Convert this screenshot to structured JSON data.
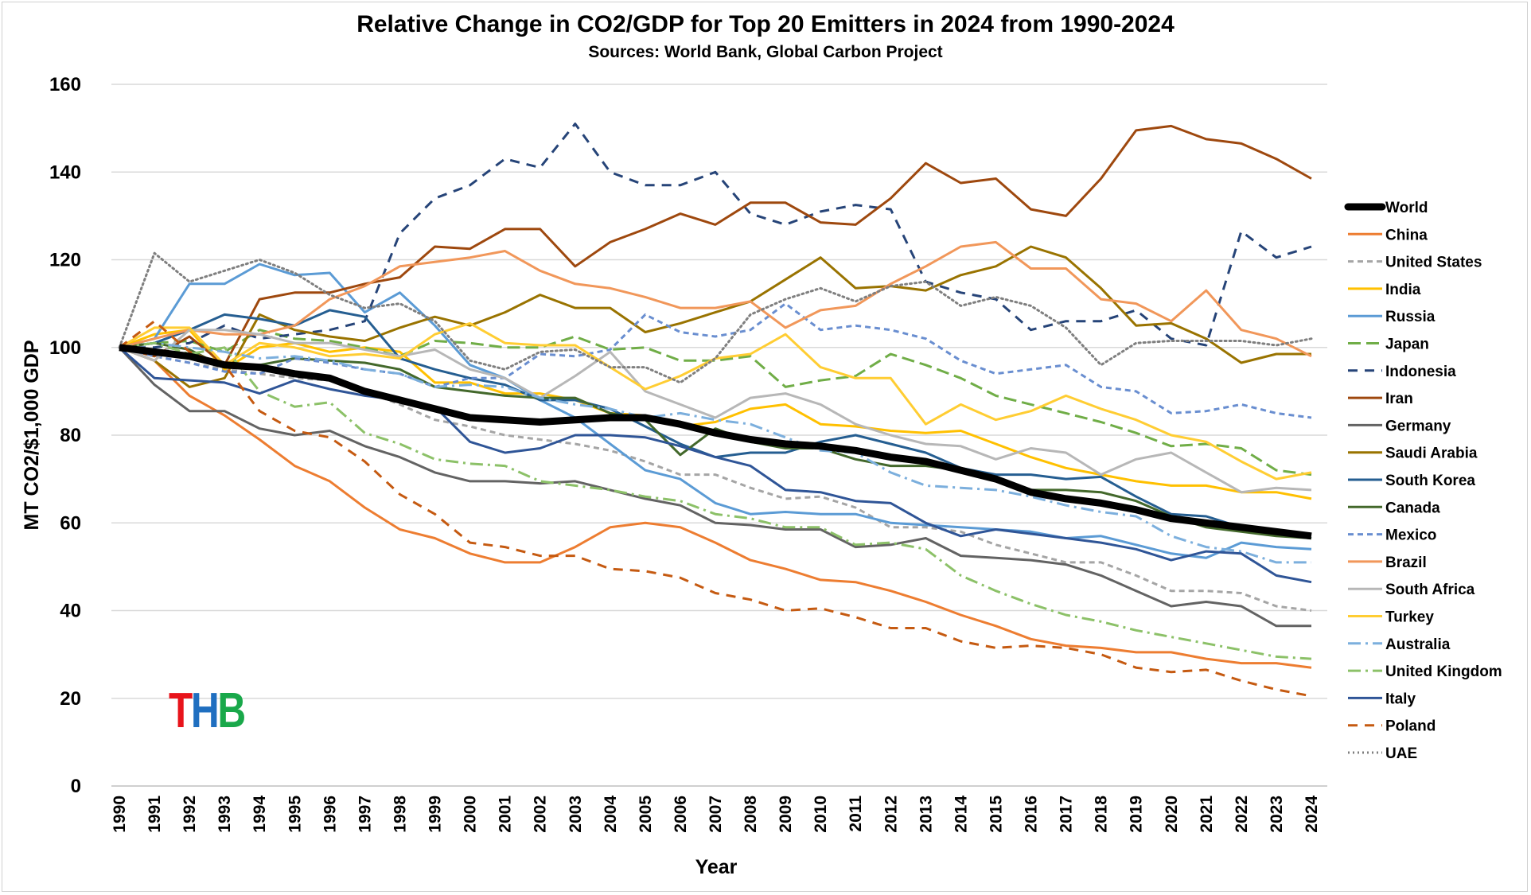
{
  "chart_data": {
    "type": "line",
    "title": "Relative Change in CO2/GDP for Top 20 Emitters in 2024 from 1990-2024",
    "subtitle": "Sources: World Bank, Global Carbon Project",
    "xlabel": "Year",
    "ylabel": "MT CO2/$1,000 GDP",
    "ylim": [
      0,
      160
    ],
    "yticks": [
      0,
      20,
      40,
      60,
      80,
      100,
      120,
      140,
      160
    ],
    "grid": true,
    "legend_position": "right",
    "x": [
      1990,
      1991,
      1992,
      1993,
      1994,
      1995,
      1996,
      1997,
      1998,
      1999,
      2000,
      2001,
      2002,
      2003,
      2004,
      2005,
      2006,
      2007,
      2008,
      2009,
      2010,
      2011,
      2012,
      2013,
      2014,
      2015,
      2016,
      2017,
      2018,
      2019,
      2020,
      2021,
      2022,
      2023,
      2024
    ],
    "series": [
      {
        "name": "World",
        "color": "#000000",
        "style": "solid-thick",
        "values": [
          100,
          99,
          98,
          96,
          95.5,
          94,
          93,
          90,
          88,
          86,
          84,
          83.5,
          83,
          83.5,
          84,
          84,
          82.5,
          80.5,
          79,
          78,
          77.5,
          76.5,
          75,
          74,
          72,
          70,
          67,
          65.5,
          64.5,
          63,
          61,
          60,
          59,
          58,
          57
        ]
      },
      {
        "name": "China",
        "color": "#ED7D31",
        "style": "solid",
        "values": [
          100,
          97,
          89,
          84.5,
          79,
          73,
          69.5,
          63.5,
          58.5,
          56.5,
          53,
          51,
          51,
          54.5,
          59,
          60,
          59,
          55.5,
          51.5,
          49.5,
          47,
          46.5,
          44.5,
          42,
          39,
          36.5,
          33.5,
          32,
          31.5,
          30.5,
          30.5,
          29,
          28,
          28,
          27
        ]
      },
      {
        "name": "United States",
        "color": "#A5A5A5",
        "style": "dash",
        "values": [
          100,
          98,
          96.5,
          95,
          94,
          93,
          92.5,
          90,
          87,
          83.5,
          82,
          80,
          79,
          78,
          76.5,
          74,
          71,
          71,
          68,
          65.5,
          66,
          63.5,
          59,
          59,
          58,
          55,
          53,
          51,
          51,
          48,
          44.5,
          44.5,
          44,
          41,
          40
        ]
      },
      {
        "name": "India",
        "color": "#FFC000",
        "style": "solid",
        "values": [
          100,
          103,
          104,
          95,
          100,
          101,
          99,
          100,
          99,
          92,
          92,
          89.5,
          89.5,
          88,
          85,
          84.5,
          82,
          83,
          86,
          87,
          82.5,
          82,
          81,
          80.5,
          81,
          78,
          75,
          72.5,
          71,
          69.5,
          68.5,
          68.5,
          67,
          67,
          65.5
        ]
      },
      {
        "name": "Russia",
        "color": "#5B9BD5",
        "style": "solid",
        "values": [
          100,
          102,
          114.5,
          114.5,
          119,
          116.5,
          117,
          108,
          112.5,
          105,
          96,
          93,
          88,
          84,
          78,
          72,
          70,
          64.5,
          62,
          62.5,
          62,
          62,
          60,
          59.5,
          59,
          58.5,
          58,
          56.5,
          57,
          55,
          53,
          52,
          55.5,
          54.5,
          54
        ]
      },
      {
        "name": "Japan",
        "color": "#70AD47",
        "style": "longdash",
        "values": [
          100,
          101,
          101.5,
          99,
          104,
          102,
          101.5,
          100,
          98,
          101.5,
          101,
          100,
          100,
          102.5,
          99.5,
          100,
          97,
          97,
          98,
          91,
          92.5,
          93.5,
          98.5,
          96,
          93,
          89,
          87,
          85,
          83,
          80.5,
          77.5,
          78,
          77,
          72,
          71
        ]
      },
      {
        "name": "Indonesia",
        "color": "#264478",
        "style": "longdash2",
        "values": [
          100,
          100,
          101,
          105,
          102,
          103,
          104,
          106,
          126,
          134,
          137,
          143,
          141,
          151,
          140,
          137,
          137,
          140,
          130.5,
          128,
          131,
          132.5,
          131.5,
          115,
          112.5,
          111,
          104,
          106,
          106,
          108.5,
          102,
          100.5,
          126.5,
          120.5,
          123
        ]
      },
      {
        "name": "Iran",
        "color": "#9E480E",
        "style": "solid",
        "values": [
          100,
          98,
          102.5,
          96,
          111,
          112.5,
          112.5,
          114.5,
          116,
          123,
          122.5,
          127,
          127,
          118.5,
          124,
          127,
          130.5,
          128,
          133,
          133,
          128.5,
          128,
          134,
          142,
          137.5,
          138.5,
          131.5,
          130,
          138.5,
          149.5,
          150.5,
          147.5,
          146.5,
          143,
          138.5
        ]
      },
      {
        "name": "Germany",
        "color": "#636363",
        "style": "solid",
        "values": [
          100,
          91.5,
          85.5,
          85.5,
          81.5,
          80,
          81,
          77.5,
          75,
          71.5,
          69.5,
          69.5,
          69,
          69.5,
          67.5,
          65.5,
          64,
          60,
          59.5,
          58.5,
          58.5,
          54.5,
          55,
          56.5,
          52.5,
          52,
          51.5,
          50.5,
          48,
          44.5,
          41,
          42,
          41,
          36.5,
          36.5
        ]
      },
      {
        "name": "Saudi Arabia",
        "color": "#997300",
        "style": "solid",
        "values": [
          100,
          97,
          91,
          93,
          107.5,
          104,
          102.5,
          101.5,
          104.5,
          107,
          105,
          108,
          112,
          109,
          109,
          103.5,
          105.5,
          108,
          110.5,
          115.5,
          120.5,
          113.5,
          114,
          113,
          116.5,
          118.5,
          123,
          120.5,
          113.5,
          105,
          105.5,
          102,
          96.5,
          98.5,
          98.5
        ]
      },
      {
        "name": "South Korea",
        "color": "#255E91",
        "style": "solid",
        "values": [
          100,
          101,
          104,
          107.5,
          106.5,
          105,
          108.5,
          107,
          97.5,
          95,
          93,
          91.5,
          88,
          88,
          86,
          82,
          78,
          75,
          76,
          76,
          78.5,
          80,
          78,
          76,
          72.5,
          71,
          71,
          70,
          70.5,
          66,
          62,
          61.5,
          59,
          58,
          56.5
        ]
      },
      {
        "name": "Canada",
        "color": "#43682B",
        "style": "solid",
        "values": [
          100,
          101,
          99.5,
          95.5,
          96,
          97.5,
          97,
          96.5,
          95,
          91,
          90,
          89,
          88.5,
          88.5,
          85,
          83.5,
          75.5,
          81.5,
          78.5,
          77,
          77,
          74.5,
          73,
          73,
          72,
          70.5,
          67.5,
          67.5,
          67,
          65,
          61.5,
          59,
          58,
          57,
          56.5
        ]
      },
      {
        "name": "Mexico",
        "color": "#698ED0",
        "style": "dash",
        "values": [
          100,
          98,
          96.5,
          94.5,
          94,
          97.5,
          96.5,
          95,
          94,
          91,
          93,
          93,
          98.5,
          98,
          99.5,
          107.5,
          103.5,
          102.5,
          104,
          110,
          104,
          105,
          104,
          102,
          97,
          94,
          95,
          96,
          91,
          90,
          85,
          85.5,
          87,
          85,
          84
        ]
      },
      {
        "name": "Brazil",
        "color": "#F1975A",
        "style": "solid",
        "values": [
          100,
          102,
          104,
          103,
          103,
          105,
          111,
          114,
          118.5,
          119.5,
          120.5,
          122,
          117.5,
          114.5,
          113.5,
          111.5,
          109,
          109,
          110.5,
          104.5,
          108.5,
          109.5,
          114.5,
          118.5,
          123,
          124,
          118,
          118,
          111,
          110,
          106,
          113,
          104,
          102,
          98
        ]
      },
      {
        "name": "South Africa",
        "color": "#B7B7B7",
        "style": "solid",
        "values": [
          100,
          97,
          104,
          104,
          103,
          101,
          101,
          99.5,
          98,
          99.5,
          95,
          93,
          88.5,
          93.5,
          99,
          90,
          87,
          84,
          88.5,
          89.5,
          87,
          82.5,
          80,
          78,
          77.5,
          74.5,
          77,
          76,
          71,
          74.5,
          76,
          71.5,
          67,
          68,
          67.5
        ]
      },
      {
        "name": "Turkey",
        "color": "#FFCD33",
        "style": "solid",
        "values": [
          100,
          104.5,
          104.5,
          96,
          101,
          100,
          98,
          98.5,
          97.5,
          103,
          105.5,
          101,
          100.5,
          100.5,
          95.5,
          90.5,
          93.5,
          97.5,
          98.5,
          103,
          95.5,
          93,
          93,
          82.5,
          87,
          83.5,
          85.5,
          89,
          86,
          83.5,
          80,
          78.5,
          74,
          70,
          71.5
        ]
      },
      {
        "name": "Australia",
        "color": "#7CAFDD",
        "style": "dashdot",
        "values": [
          100,
          101,
          100,
          99,
          97.5,
          98,
          97,
          95,
          94,
          91,
          91.5,
          91,
          88.5,
          87,
          86,
          84,
          85,
          83.5,
          82.5,
          79.5,
          76.5,
          76,
          71.5,
          68.5,
          68,
          67.5,
          66,
          64,
          62.5,
          61.5,
          57,
          54.5,
          53.5,
          51,
          51
        ]
      },
      {
        "name": "United Kingdom",
        "color": "#8CC168",
        "style": "dashdot",
        "values": [
          100,
          101,
          98.5,
          100,
          90,
          86.5,
          87.5,
          80.5,
          78,
          74.5,
          73.5,
          73,
          69.5,
          68.5,
          67.5,
          66,
          65,
          62,
          61,
          59,
          59,
          55,
          55.5,
          54,
          48,
          44.5,
          41.5,
          39,
          37.5,
          35.5,
          34,
          32.5,
          31,
          29.5,
          29
        ]
      },
      {
        "name": "Italy",
        "color": "#2F5597",
        "style": "solid",
        "values": [
          100,
          93,
          92.5,
          92,
          89.5,
          92.5,
          90.5,
          89,
          88,
          86.5,
          78.5,
          76,
          77,
          80,
          80,
          79.5,
          77.5,
          75,
          73,
          67.5,
          67,
          65,
          64.5,
          60,
          57,
          58.5,
          57.5,
          56.5,
          55.5,
          54,
          51.5,
          53.5,
          53,
          48,
          46.5
        ]
      },
      {
        "name": "Poland",
        "color": "#C55A11",
        "style": "longdash2",
        "values": [
          100,
          106,
          99,
          96,
          85.5,
          81,
          79.5,
          74,
          66.5,
          62,
          55.5,
          54.5,
          52.5,
          52.5,
          49.5,
          49,
          47.5,
          44,
          42.5,
          40,
          40.5,
          38.5,
          36,
          36,
          33,
          31.5,
          32,
          31.5,
          30,
          27,
          26,
          26.5,
          24,
          22,
          20.5
        ]
      },
      {
        "name": "UAE",
        "color": "#7F7F7F",
        "style": "dot",
        "values": [
          100,
          121.5,
          115,
          117.5,
          120,
          117,
          112,
          109,
          110,
          106,
          97,
          95,
          99,
          99.5,
          95.5,
          95.5,
          92,
          97.5,
          107.5,
          111,
          113.5,
          110.5,
          114,
          115,
          109.5,
          111.5,
          109.5,
          104.5,
          96,
          101,
          101.5,
          101.5,
          101.5,
          100.5,
          102
        ]
      }
    ]
  },
  "logo": {
    "t": "T",
    "h": "H",
    "b": "B",
    "colors": {
      "t": "#E8141B",
      "h": "#1F6FC0",
      "b": "#19A84A"
    }
  }
}
